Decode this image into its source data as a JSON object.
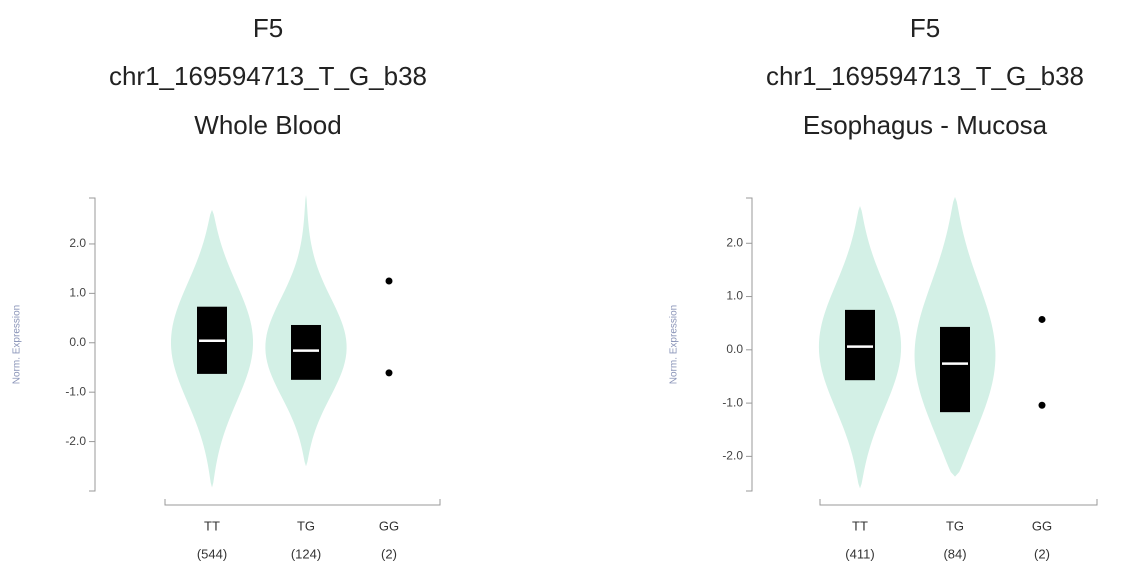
{
  "chart_data": [
    {
      "type": "violin",
      "title": "F5",
      "variant": "chr1_169594713_T_G_b38",
      "tissue": "Whole Blood",
      "ylabel": "Norm. Expression",
      "violin_color": "#d3f0e6",
      "box_color": "#000000",
      "median_color": "#ffffff",
      "ylim": [
        -3.0,
        2.93
      ],
      "yticks": [
        {
          "value": 2,
          "label": "2.0"
        },
        {
          "value": 1,
          "label": "1.0"
        },
        {
          "value": 0,
          "label": "0.0"
        },
        {
          "value": -1,
          "label": "-1.0"
        },
        {
          "value": -2,
          "label": "-2.0"
        }
      ],
      "categories": [
        "TT",
        "TG",
        "GG"
      ],
      "counts": [
        "(544)",
        "(124)",
        "(2)"
      ],
      "stats": [
        {
          "min": -2.93,
          "q1": -0.63,
          "median": 0.04,
          "q3": 0.73,
          "max": 2.69
        },
        {
          "min": -2.5,
          "q1": -0.75,
          "median": -0.16,
          "q3": 0.36,
          "max": 2.99
        },
        {
          "points": [
            1.25,
            -0.61
          ]
        }
      ]
    },
    {
      "type": "violin",
      "title": "F5",
      "variant": "chr1_169594713_T_G_b38",
      "tissue": "Esophagus - Mucosa",
      "ylabel": "Norm. Expression",
      "violin_color": "#d3f0e6",
      "box_color": "#000000",
      "median_color": "#ffffff",
      "ylim": [
        -2.65,
        2.85
      ],
      "yticks": [
        {
          "value": 2,
          "label": "2.0"
        },
        {
          "value": 1,
          "label": "1.0"
        },
        {
          "value": 0,
          "label": "0.0"
        },
        {
          "value": -1,
          "label": "-1.0"
        },
        {
          "value": -2,
          "label": "-2.0"
        }
      ],
      "categories": [
        "TT",
        "TG",
        "GG"
      ],
      "counts": [
        "(411)",
        "(84)",
        "(2)"
      ],
      "stats": [
        {
          "min": -2.6,
          "q1": -0.57,
          "median": 0.06,
          "q3": 0.75,
          "max": 2.7
        },
        {
          "min": -2.38,
          "q1": -1.17,
          "median": -0.26,
          "q3": 0.43,
          "max": 2.87
        },
        {
          "points": [
            0.57,
            -1.04
          ]
        }
      ]
    }
  ]
}
